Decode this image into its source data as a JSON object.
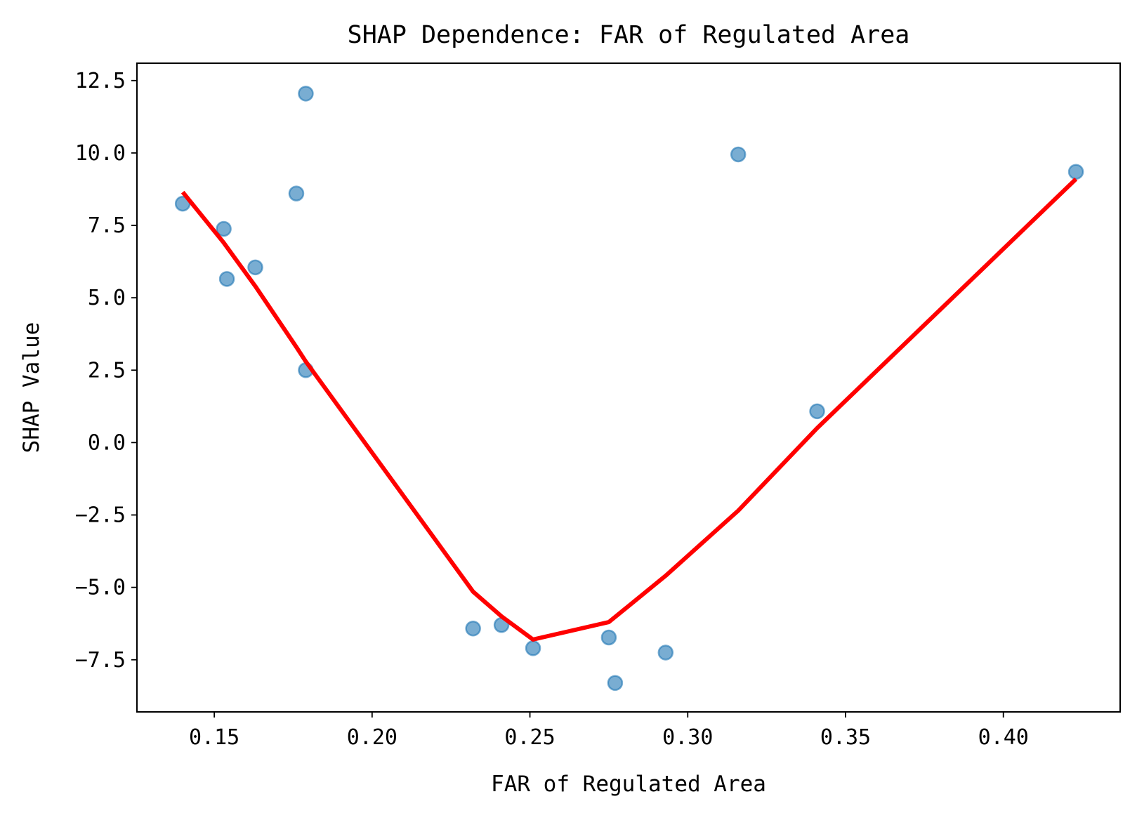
{
  "chart_data": {
    "type": "scatter",
    "title": "SHAP Dependence: FAR of Regulated Area",
    "xlabel": "FAR of Regulated Area",
    "ylabel": "SHAP Value",
    "xlim": [
      0.1255,
      0.437
    ],
    "ylim": [
      -9.3,
      13.1
    ],
    "xticks": [
      0.15,
      0.2,
      0.25,
      0.3,
      0.35,
      0.4
    ],
    "xtick_labels": [
      "0.15",
      "0.20",
      "0.25",
      "0.30",
      "0.35",
      "0.40"
    ],
    "yticks": [
      12.5,
      10.0,
      7.5,
      5.0,
      2.5,
      0.0,
      -2.5,
      -5.0,
      -7.5
    ],
    "ytick_labels": [
      "12.5",
      "10.0",
      "7.5",
      "5.0",
      "2.5",
      "0.0",
      "−2.5",
      "−5.0",
      "−7.5"
    ],
    "grid": false,
    "series": [
      {
        "kind": "scatter",
        "color": "#1f77b4",
        "points": [
          {
            "x": 0.14,
            "y": 8.25
          },
          {
            "x": 0.153,
            "y": 7.38
          },
          {
            "x": 0.154,
            "y": 5.65
          },
          {
            "x": 0.163,
            "y": 6.05
          },
          {
            "x": 0.176,
            "y": 8.6
          },
          {
            "x": 0.179,
            "y": 12.05
          },
          {
            "x": 0.179,
            "y": 2.5
          },
          {
            "x": 0.232,
            "y": -6.42
          },
          {
            "x": 0.241,
            "y": -6.3
          },
          {
            "x": 0.251,
            "y": -7.1
          },
          {
            "x": 0.275,
            "y": -6.73
          },
          {
            "x": 0.277,
            "y": -8.3
          },
          {
            "x": 0.293,
            "y": -7.25
          },
          {
            "x": 0.316,
            "y": 9.95
          },
          {
            "x": 0.341,
            "y": 1.08
          },
          {
            "x": 0.423,
            "y": 9.35
          }
        ]
      },
      {
        "kind": "line",
        "color": "#ff0000",
        "points": [
          {
            "x": 0.14,
            "y": 8.65
          },
          {
            "x": 0.153,
            "y": 6.9
          },
          {
            "x": 0.163,
            "y": 5.4
          },
          {
            "x": 0.176,
            "y": 3.3
          },
          {
            "x": 0.179,
            "y": 2.8
          },
          {
            "x": 0.232,
            "y": -5.15
          },
          {
            "x": 0.241,
            "y": -6.0
          },
          {
            "x": 0.251,
            "y": -6.8
          },
          {
            "x": 0.275,
            "y": -6.2
          },
          {
            "x": 0.293,
            "y": -4.6
          },
          {
            "x": 0.316,
            "y": -2.35
          },
          {
            "x": 0.341,
            "y": 0.5
          },
          {
            "x": 0.423,
            "y": 9.1
          }
        ]
      }
    ]
  }
}
